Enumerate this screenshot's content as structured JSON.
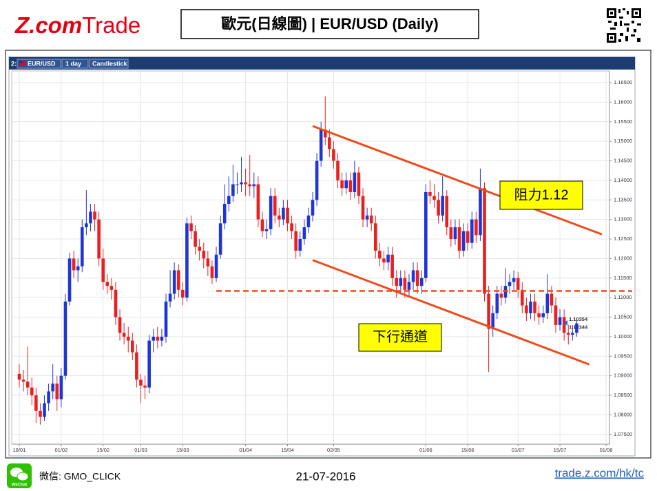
{
  "header": {
    "logo_brand": "Z.com",
    "logo_product": "Trade",
    "title": "歐元(日線圖) | EUR/USD (Daily)"
  },
  "chart_data": {
    "type": "candlestick",
    "toolbar": [
      "2:",
      "EUR/USD",
      "1 day",
      "Candlestick"
    ],
    "categories": [
      "18/01",
      null,
      null,
      null,
      null,
      null,
      null,
      null,
      null,
      null,
      "01/02",
      null,
      null,
      null,
      null,
      null,
      null,
      null,
      null,
      null,
      "15/02",
      null,
      null,
      null,
      null,
      null,
      null,
      null,
      null,
      "01/03",
      null,
      null,
      null,
      null,
      null,
      null,
      null,
      null,
      null,
      "15/03",
      null,
      null,
      null,
      null,
      null,
      null,
      null,
      null,
      null,
      null,
      null,
      null,
      null,
      null,
      "01/04",
      null,
      null,
      null,
      null,
      null,
      null,
      null,
      null,
      null,
      "15/04",
      null,
      null,
      null,
      null,
      null,
      null,
      null,
      null,
      null,
      null,
      "02/05",
      null,
      null,
      null,
      null,
      null,
      null,
      null,
      null,
      null,
      null,
      null,
      null,
      null,
      null,
      null,
      null,
      null,
      null,
      null,
      null,
      null,
      "01/06",
      null,
      null,
      null,
      null,
      null,
      null,
      null,
      null,
      null,
      "15/06",
      null,
      null,
      null,
      null,
      null,
      null,
      null,
      null,
      null,
      null,
      null,
      "01/07",
      null,
      null,
      null,
      null,
      null,
      null,
      null,
      null,
      null,
      "15/07",
      null,
      null,
      null,
      null,
      null,
      null,
      null,
      null,
      null,
      null,
      "01/08"
    ],
    "open": [
      1.0905,
      1.089,
      1.0885,
      1.087,
      1.085,
      1.081,
      1.0795,
      1.083,
      1.086,
      1.088,
      1.084,
      1.09,
      1.109,
      1.12,
      1.117,
      1.118,
      1.128,
      1.129,
      1.132,
      1.13,
      1.12,
      1.114,
      1.113,
      1.112,
      1.105,
      1.101,
      1.1,
      1.099,
      1.096,
      1.089,
      1.0875,
      1.087,
      1.099,
      1.1,
      1.099,
      1.1,
      1.109,
      1.111,
      1.117,
      1.112,
      1.11,
      1.129,
      1.127,
      1.123,
      1.122,
      1.12,
      1.118,
      1.115,
      1.121,
      1.129,
      1.134,
      1.136,
      1.139,
      1.139,
      1.1395,
      1.139,
      1.1385,
      1.139,
      1.13,
      1.127,
      1.1275,
      1.136,
      1.131,
      1.13,
      1.133,
      1.129,
      1.127,
      1.122,
      1.125,
      1.128,
      1.131,
      1.135,
      1.145,
      1.153,
      1.151,
      1.148,
      1.145,
      1.14,
      1.138,
      1.14,
      1.137,
      1.142,
      1.136,
      1.13,
      1.131,
      1.129,
      1.122,
      1.12,
      1.119,
      1.121,
      1.115,
      1.113,
      1.115,
      1.112,
      1.114,
      1.117,
      1.113,
      1.115,
      1.137,
      1.136,
      1.135,
      1.131,
      1.136,
      1.128,
      1.125,
      1.128,
      1.122,
      1.127,
      1.124,
      1.13,
      1.126,
      1.138,
      1.111,
      1.102,
      1.106,
      1.111,
      1.11,
      1.113,
      1.114,
      1.115,
      1.112,
      1.108,
      1.106,
      1.109,
      1.106,
      1.105,
      1.106,
      1.111,
      1.108,
      1.103,
      1.105,
      1.101,
      1.1005,
      1.101,
      null,
      null,
      null,
      null,
      null,
      null,
      null
    ],
    "high": [
      1.093,
      1.0915,
      1.0975,
      1.0895,
      1.087,
      1.083,
      1.085,
      1.088,
      1.093,
      1.09,
      1.092,
      1.111,
      1.1215,
      1.122,
      1.12,
      1.13,
      1.1375,
      1.134,
      1.134,
      1.132,
      1.1225,
      1.116,
      1.115,
      1.114,
      1.107,
      1.1035,
      1.1025,
      1.101,
      1.098,
      1.0905,
      1.09,
      1.1005,
      1.102,
      1.1025,
      1.102,
      1.111,
      1.117,
      1.119,
      1.1185,
      1.114,
      1.1305,
      1.131,
      1.1285,
      1.125,
      1.124,
      1.122,
      1.1195,
      1.123,
      1.131,
      1.139,
      1.141,
      1.144,
      1.142,
      1.146,
      1.143,
      1.1465,
      1.142,
      1.141,
      1.132,
      1.13,
      1.138,
      1.138,
      1.133,
      1.135,
      1.135,
      1.131,
      1.129,
      1.127,
      1.13,
      1.133,
      1.137,
      1.147,
      1.155,
      1.1615,
      1.153,
      1.15,
      1.147,
      1.142,
      1.142,
      1.142,
      1.145,
      1.1435,
      1.138,
      1.133,
      1.133,
      1.131,
      1.124,
      1.122,
      1.123,
      1.123,
      1.117,
      1.117,
      1.117,
      1.116,
      1.119,
      1.119,
      1.117,
      1.139,
      1.14,
      1.139,
      1.137,
      1.141,
      1.1375,
      1.13,
      1.13,
      1.13,
      1.129,
      1.129,
      1.132,
      1.132,
      1.143,
      1.1395,
      1.113,
      1.108,
      1.113,
      1.113,
      1.1175,
      1.116,
      1.117,
      1.1165,
      1.114,
      1.11,
      1.111,
      1.111,
      1.108,
      1.108,
      1.116,
      1.113,
      1.11,
      1.107,
      1.107,
      1.103,
      1.103,
      1.1045,
      null,
      null,
      null,
      null,
      null,
      null,
      null
    ],
    "low": [
      1.087,
      1.086,
      1.085,
      1.0825,
      1.078,
      1.0775,
      1.0785,
      1.081,
      1.084,
      1.081,
      1.082,
      1.089,
      1.108,
      1.115,
      1.114,
      1.1165,
      1.126,
      1.127,
      1.127,
      1.118,
      1.112,
      1.111,
      1.1095,
      1.103,
      1.099,
      1.098,
      1.096,
      1.094,
      1.087,
      1.083,
      1.084,
      1.0855,
      1.096,
      1.097,
      1.0975,
      1.0985,
      1.1075,
      1.1095,
      1.11,
      1.108,
      1.109,
      1.125,
      1.121,
      1.1195,
      1.1175,
      1.1155,
      1.1135,
      1.114,
      1.12,
      1.1275,
      1.132,
      1.1345,
      1.1365,
      1.137,
      1.136,
      1.136,
      1.1355,
      1.128,
      1.1255,
      1.125,
      1.126,
      1.129,
      1.128,
      1.1285,
      1.127,
      1.125,
      1.12,
      1.1205,
      1.1235,
      1.1265,
      1.1295,
      1.1335,
      1.1435,
      1.149,
      1.146,
      1.143,
      1.138,
      1.136,
      1.1365,
      1.135,
      1.1355,
      1.134,
      1.128,
      1.128,
      1.127,
      1.12,
      1.118,
      1.117,
      1.117,
      1.113,
      1.11,
      1.111,
      1.11,
      1.11,
      1.112,
      1.111,
      1.111,
      1.114,
      1.134,
      1.133,
      1.129,
      1.1295,
      1.126,
      1.123,
      1.1235,
      1.12,
      1.1205,
      1.122,
      1.1225,
      1.124,
      1.1245,
      1.109,
      1.091,
      1.1,
      1.1045,
      1.108,
      1.1085,
      1.111,
      1.112,
      1.11,
      1.106,
      1.104,
      1.1045,
      1.104,
      1.103,
      1.1035,
      1.1045,
      1.106,
      1.101,
      1.1015,
      1.099,
      1.098,
      1.099,
      1.1,
      null,
      null,
      null,
      null,
      null,
      null,
      null
    ],
    "close": [
      1.089,
      1.0885,
      1.087,
      1.085,
      1.081,
      1.0795,
      1.083,
      1.086,
      1.088,
      1.084,
      1.09,
      1.109,
      1.12,
      1.117,
      1.118,
      1.128,
      1.129,
      1.132,
      1.13,
      1.12,
      1.114,
      1.113,
      1.112,
      1.105,
      1.101,
      1.1,
      1.099,
      1.096,
      1.089,
      1.0875,
      1.087,
      1.099,
      1.1,
      1.099,
      1.1,
      1.109,
      1.111,
      1.117,
      1.112,
      1.11,
      1.129,
      1.127,
      1.123,
      1.122,
      1.12,
      1.118,
      1.115,
      1.121,
      1.129,
      1.134,
      1.136,
      1.139,
      1.139,
      1.1395,
      1.139,
      1.1385,
      1.139,
      1.13,
      1.127,
      1.1275,
      1.136,
      1.131,
      1.13,
      1.133,
      1.129,
      1.127,
      1.122,
      1.125,
      1.128,
      1.131,
      1.135,
      1.145,
      1.153,
      1.151,
      1.148,
      1.145,
      1.14,
      1.138,
      1.14,
      1.137,
      1.142,
      1.136,
      1.13,
      1.131,
      1.129,
      1.122,
      1.12,
      1.119,
      1.121,
      1.115,
      1.113,
      1.115,
      1.112,
      1.114,
      1.117,
      1.113,
      1.115,
      1.137,
      1.136,
      1.135,
      1.131,
      1.136,
      1.128,
      1.125,
      1.128,
      1.122,
      1.127,
      1.124,
      1.13,
      1.126,
      1.138,
      1.111,
      1.102,
      1.106,
      1.111,
      1.11,
      1.113,
      1.114,
      1.115,
      1.112,
      1.108,
      1.106,
      1.109,
      1.106,
      1.105,
      1.106,
      1.111,
      1.108,
      1.103,
      1.105,
      1.101,
      1.1005,
      1.101,
      1.1034,
      null,
      null,
      null,
      null,
      null,
      null,
      null
    ],
    "up_color": "#1f35d6",
    "down_color": "#e8201f",
    "ylim": [
      1.0725,
      1.168
    ],
    "yticks": [
      {
        "value": 1.075,
        "label": "1.07500"
      },
      {
        "value": 1.08,
        "label": "1.08000"
      },
      {
        "value": 1.085,
        "label": "1.08500"
      },
      {
        "value": 1.09,
        "label": "1.09000"
      },
      {
        "value": 1.095,
        "label": "1.09500"
      },
      {
        "value": 1.1,
        "label": "1.10000"
      },
      {
        "value": 1.105,
        "label": "1.10500"
      },
      {
        "value": 1.11,
        "label": "1.11000"
      },
      {
        "value": 1.115,
        "label": "1.11500"
      },
      {
        "value": 1.12,
        "label": "1.12000"
      },
      {
        "value": 1.125,
        "label": "1.12500"
      },
      {
        "value": 1.13,
        "label": "1.13000"
      },
      {
        "value": 1.135,
        "label": "1.13500"
      },
      {
        "value": 1.14,
        "label": "1.14000"
      },
      {
        "value": 1.145,
        "label": "1.14500"
      },
      {
        "value": 1.15,
        "label": "1.15000"
      },
      {
        "value": 1.155,
        "label": "1.15500"
      },
      {
        "value": 1.16,
        "label": "1.16000"
      },
      {
        "value": 1.165,
        "label": "1.16500"
      }
    ],
    "grid": true,
    "last_prices": [
      {
        "value": 1.10354,
        "color": "#1a73c9"
      },
      {
        "value": 1.10344,
        "color": "#e8201f"
      }
    ],
    "trend_lines": [
      {
        "from": [
          70,
          1.1539
        ],
        "to": [
          139,
          1.1262
        ]
      },
      {
        "from": [
          70,
          1.1196
        ],
        "to": [
          136,
          1.0929
        ]
      }
    ],
    "trend_color": "#ee4b1c",
    "support_line": {
      "value": 1.1117,
      "from": 47
    },
    "annotations": [
      {
        "text": "阻力1.12"
      },
      {
        "text": "下行通道"
      }
    ]
  },
  "footer": {
    "wechat_icon_label": "WeChat",
    "wechat": "微信: GMO_CLICK",
    "date": "21-07-2016",
    "link": "trade.z.com/hk/tc"
  }
}
